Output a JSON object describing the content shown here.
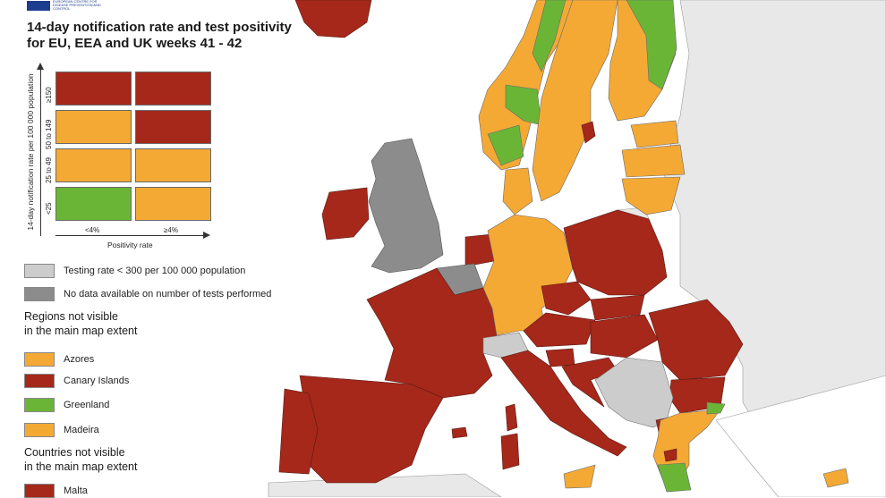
{
  "header": {
    "title_line1": "14-day notification rate and test positivity",
    "title_line2": "for EU, EEA and UK weeks 41 - 42",
    "logo_text": "EUROPEAN CENTRE FOR DISEASE PREVENTION AND CONTROL"
  },
  "colors": {
    "dark_red": "#a5281b",
    "orange": "#f4a935",
    "green": "#6bb536",
    "light_grey": "#cccccc",
    "dark_grey": "#8c8c8c",
    "non_eu": "#e8e8e8",
    "sea": "#ffffff",
    "border": "#6a6a6a"
  },
  "matrix": {
    "y_axis_label": "14-day notification rate per 100 000 population",
    "x_axis_label": "Positivity rate",
    "rows": [
      "≥150",
      "50 to 149",
      "25 to 49",
      "<25"
    ],
    "cols": [
      "<4%",
      "≥4%"
    ],
    "cells": [
      [
        "dark_red",
        "dark_red"
      ],
      [
        "orange",
        "dark_red"
      ],
      [
        "orange",
        "orange"
      ],
      [
        "green",
        "orange"
      ]
    ]
  },
  "legend": {
    "testing_rate": "Testing rate < 300 per 100 000 population",
    "no_data": "No data available on number of tests performed",
    "regions_heading_1": "Regions not visible",
    "regions_heading_2": "in the main map extent",
    "regions": [
      {
        "label": "Azores",
        "color": "orange"
      },
      {
        "label": "Canary Islands",
        "color": "dark_red"
      },
      {
        "label": "Greenland",
        "color": "green"
      },
      {
        "label": "Madeira",
        "color": "orange"
      }
    ],
    "countries_heading_1": "Countries not visible",
    "countries_heading_2": "in the main map extent",
    "countries": [
      {
        "label": "Malta",
        "color": "dark_red"
      }
    ]
  },
  "map_regions": [
    {
      "name": "iceland",
      "color": "dark_red"
    },
    {
      "name": "norway",
      "color": "orange"
    },
    {
      "name": "sweden",
      "color": "orange"
    },
    {
      "name": "finland",
      "color": "orange"
    },
    {
      "name": "estonia",
      "color": "orange"
    },
    {
      "name": "latvia",
      "color": "orange"
    },
    {
      "name": "lithuania",
      "color": "orange"
    },
    {
      "name": "denmark",
      "color": "orange"
    },
    {
      "name": "ireland",
      "color": "dark_red"
    },
    {
      "name": "uk",
      "color": "dark_grey"
    },
    {
      "name": "netherlands",
      "color": "dark_red"
    },
    {
      "name": "belgium",
      "color": "dark_grey"
    },
    {
      "name": "france",
      "color": "dark_red"
    },
    {
      "name": "germany",
      "color": "orange"
    },
    {
      "name": "poland",
      "color": "dark_red"
    },
    {
      "name": "czechia",
      "color": "dark_red"
    },
    {
      "name": "slovakia",
      "color": "dark_red"
    },
    {
      "name": "austria",
      "color": "dark_red"
    },
    {
      "name": "switzerland",
      "color": "light_grey"
    },
    {
      "name": "hungary",
      "color": "dark_red"
    },
    {
      "name": "romania",
      "color": "dark_red"
    },
    {
      "name": "bulgaria",
      "color": "dark_red"
    },
    {
      "name": "slovenia",
      "color": "dark_red"
    },
    {
      "name": "croatia",
      "color": "dark_red"
    },
    {
      "name": "italy",
      "color": "dark_red"
    },
    {
      "name": "spain",
      "color": "dark_red"
    },
    {
      "name": "portugal",
      "color": "dark_red"
    },
    {
      "name": "greece",
      "color": "orange"
    },
    {
      "name": "corsica",
      "color": "dark_red"
    },
    {
      "name": "sardinia",
      "color": "dark_red"
    },
    {
      "name": "sicily",
      "color": "dark_red"
    },
    {
      "name": "cyprus",
      "color": "orange"
    },
    {
      "name": "balkans_non_eu",
      "color": "light_grey"
    }
  ]
}
